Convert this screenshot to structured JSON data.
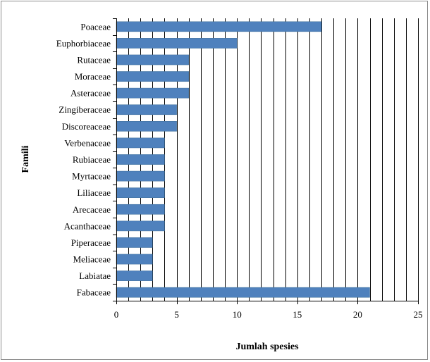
{
  "chart_data": {
    "type": "bar",
    "orientation": "horizontal",
    "categories": [
      "Poaceae",
      "Euphorbiaceae",
      "Rutaceae",
      "Moraceae",
      "Asteraceae",
      "Zingiberaceae",
      "Discoreaceae",
      "Verbenaceae",
      "Rubiaceae",
      "Myrtaceae",
      "Liliaceae",
      "Arecaceae",
      "Acanthaceae",
      "Piperaceae",
      "Meliaceae",
      "Labiatae",
      "Fabaceae"
    ],
    "values": [
      17,
      10,
      6,
      6,
      6,
      5,
      5,
      4,
      4,
      4,
      4,
      4,
      4,
      3,
      3,
      3,
      21
    ],
    "xlabel": "Jumlah spesies",
    "ylabel": "Famili",
    "xlim": [
      0,
      25
    ],
    "xticks": [
      0,
      5,
      10,
      15,
      20,
      25
    ],
    "grid": "vertical lines at every 1 unit",
    "legend": "none",
    "bar_color": "#4f81bd"
  }
}
